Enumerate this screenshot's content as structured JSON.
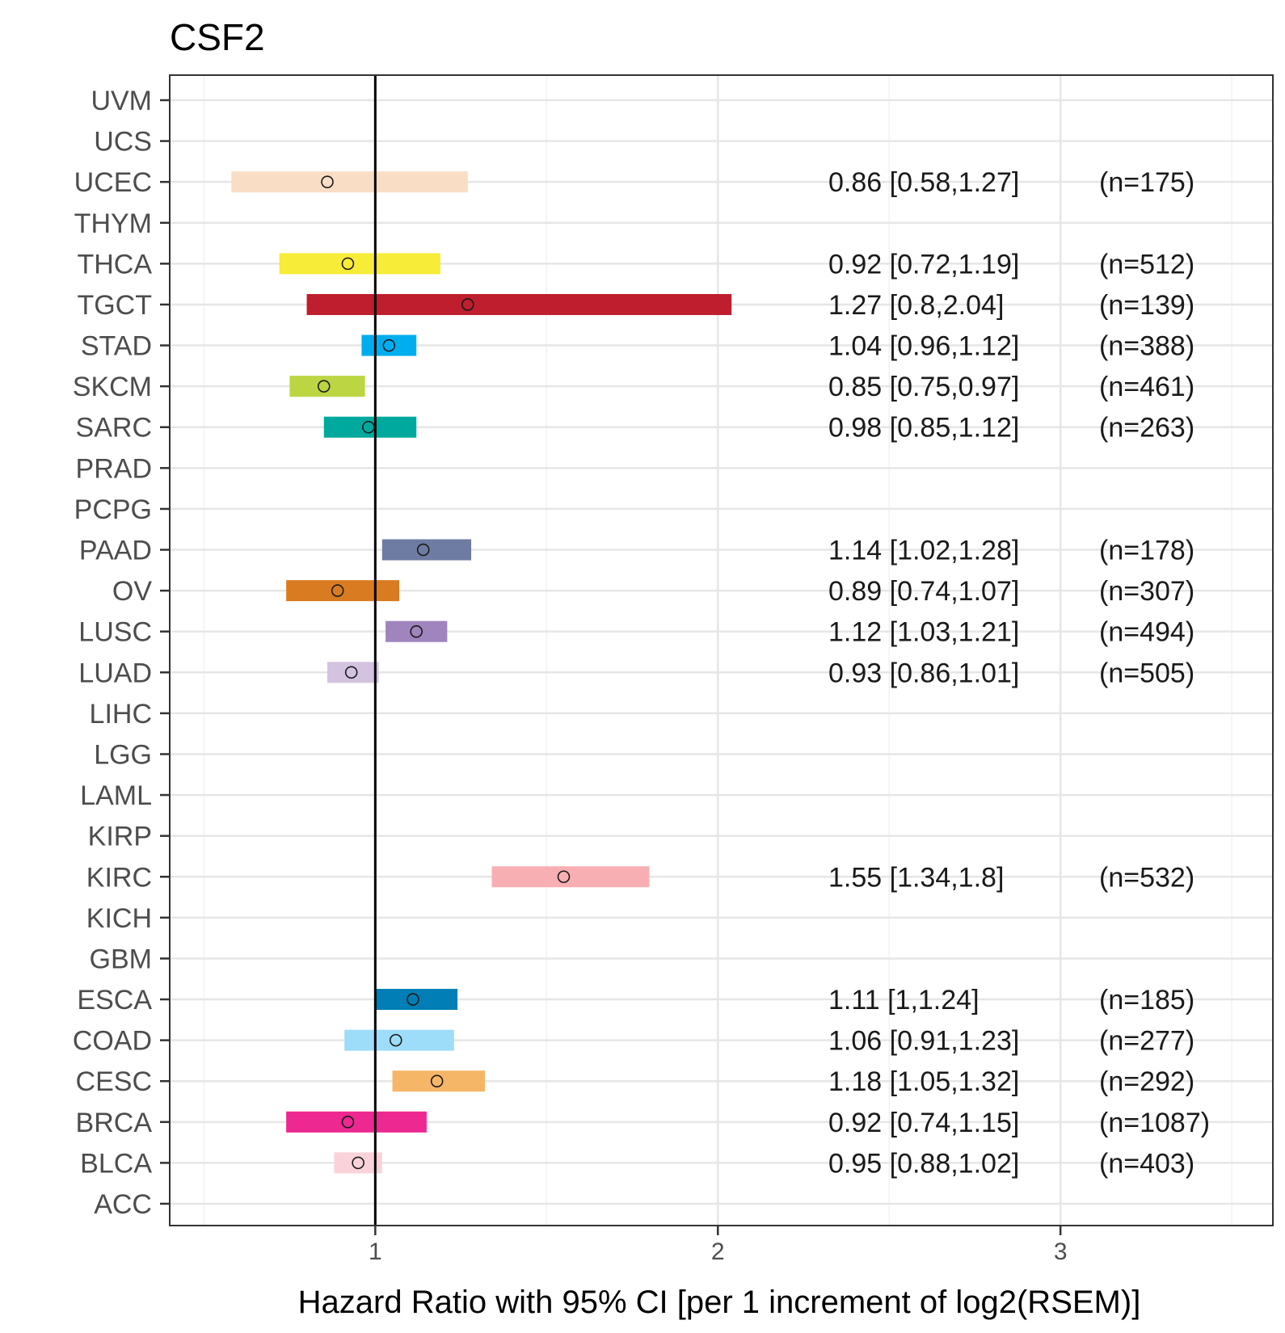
{
  "chart_data": {
    "type": "forest",
    "title": "CSF2",
    "xlabel": "Hazard Ratio with 95% CI [per 1 increment of log2(RSEM)]",
    "xlim": [
      0.4,
      3.62
    ],
    "xticks": [
      "1",
      "2",
      "3"
    ],
    "xtick_values": [
      1,
      2,
      3
    ],
    "reference_line": 1,
    "grid": true,
    "rows": [
      {
        "label": "UVM"
      },
      {
        "label": "UCS"
      },
      {
        "label": "UCEC",
        "hr": 0.86,
        "lo": 0.58,
        "hi": 1.27,
        "text": "0.86 [0.58,1.27]",
        "n": "(n=175)",
        "color": "#F9DDC5"
      },
      {
        "label": "THYM"
      },
      {
        "label": "THCA",
        "hr": 0.92,
        "lo": 0.72,
        "hi": 1.19,
        "text": "0.92 [0.72,1.19]",
        "n": "(n=512)",
        "color": "#F7EC37"
      },
      {
        "label": "TGCT",
        "hr": 1.27,
        "lo": 0.8,
        "hi": 2.04,
        "text": "1.27 [0.8,2.04]",
        "n": "(n=139)",
        "color": "#BE1E2D"
      },
      {
        "label": "STAD",
        "hr": 1.04,
        "lo": 0.96,
        "hi": 1.12,
        "text": "1.04 [0.96,1.12]",
        "n": "(n=388)",
        "color": "#00AEEF"
      },
      {
        "label": "SKCM",
        "hr": 0.85,
        "lo": 0.75,
        "hi": 0.97,
        "text": "0.85 [0.75,0.97]",
        "n": "(n=461)",
        "color": "#BBD642"
      },
      {
        "label": "SARC",
        "hr": 0.98,
        "lo": 0.85,
        "hi": 1.12,
        "text": "0.98 [0.85,1.12]",
        "n": "(n=263)",
        "color": "#00A99D"
      },
      {
        "label": "PRAD"
      },
      {
        "label": "PCPG"
      },
      {
        "label": "PAAD",
        "hr": 1.14,
        "lo": 1.02,
        "hi": 1.28,
        "text": "1.14 [1.02,1.28]",
        "n": "(n=178)",
        "color": "#6E7BA2"
      },
      {
        "label": "OV",
        "hr": 0.89,
        "lo": 0.74,
        "hi": 1.07,
        "text": "0.89 [0.74,1.07]",
        "n": "(n=307)",
        "color": "#D97C21"
      },
      {
        "label": "LUSC",
        "hr": 1.12,
        "lo": 1.03,
        "hi": 1.21,
        "text": "1.12 [1.03,1.21]",
        "n": "(n=494)",
        "color": "#A084BD"
      },
      {
        "label": "LUAD",
        "hr": 0.93,
        "lo": 0.86,
        "hi": 1.01,
        "text": "0.93 [0.86,1.01]",
        "n": "(n=505)",
        "color": "#D3C3E0"
      },
      {
        "label": "LIHC"
      },
      {
        "label": "LGG"
      },
      {
        "label": "LAML"
      },
      {
        "label": "KIRP"
      },
      {
        "label": "KIRC",
        "hr": 1.55,
        "lo": 1.34,
        "hi": 1.8,
        "text": "1.55 [1.34,1.8]",
        "n": "(n=532)",
        "color": "#F8AFB4"
      },
      {
        "label": "KICH"
      },
      {
        "label": "GBM"
      },
      {
        "label": "ESCA",
        "hr": 1.11,
        "lo": 1.0,
        "hi": 1.24,
        "text": "1.11 [1,1.24]",
        "n": "(n=185)",
        "color": "#007EB5"
      },
      {
        "label": "COAD",
        "hr": 1.06,
        "lo": 0.91,
        "hi": 1.23,
        "text": "1.06 [0.91,1.23]",
        "n": "(n=277)",
        "color": "#9EDDF9"
      },
      {
        "label": "CESC",
        "hr": 1.18,
        "lo": 1.05,
        "hi": 1.32,
        "text": "1.18 [1.05,1.32]",
        "n": "(n=292)",
        "color": "#F6B667"
      },
      {
        "label": "BRCA",
        "hr": 0.92,
        "lo": 0.74,
        "hi": 1.15,
        "text": "0.92 [0.74,1.15]",
        "n": "(n=1087)",
        "color": "#ED2891"
      },
      {
        "label": "BLCA",
        "hr": 0.95,
        "lo": 0.88,
        "hi": 1.02,
        "text": "0.95 [0.88,1.02]",
        "n": "(n=403)",
        "color": "#FAD2D9"
      },
      {
        "label": "ACC"
      }
    ]
  }
}
